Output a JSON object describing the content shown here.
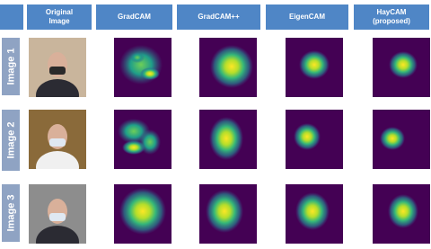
{
  "header": {
    "columns": [
      "Original Image",
      "GradCAM",
      "GradCAM++",
      "EigenCAM",
      "HayCAM (proposed)"
    ]
  },
  "rows": [
    {
      "label": "Image 1"
    },
    {
      "label": "Image 2"
    },
    {
      "label": "Image 3"
    }
  ]
}
